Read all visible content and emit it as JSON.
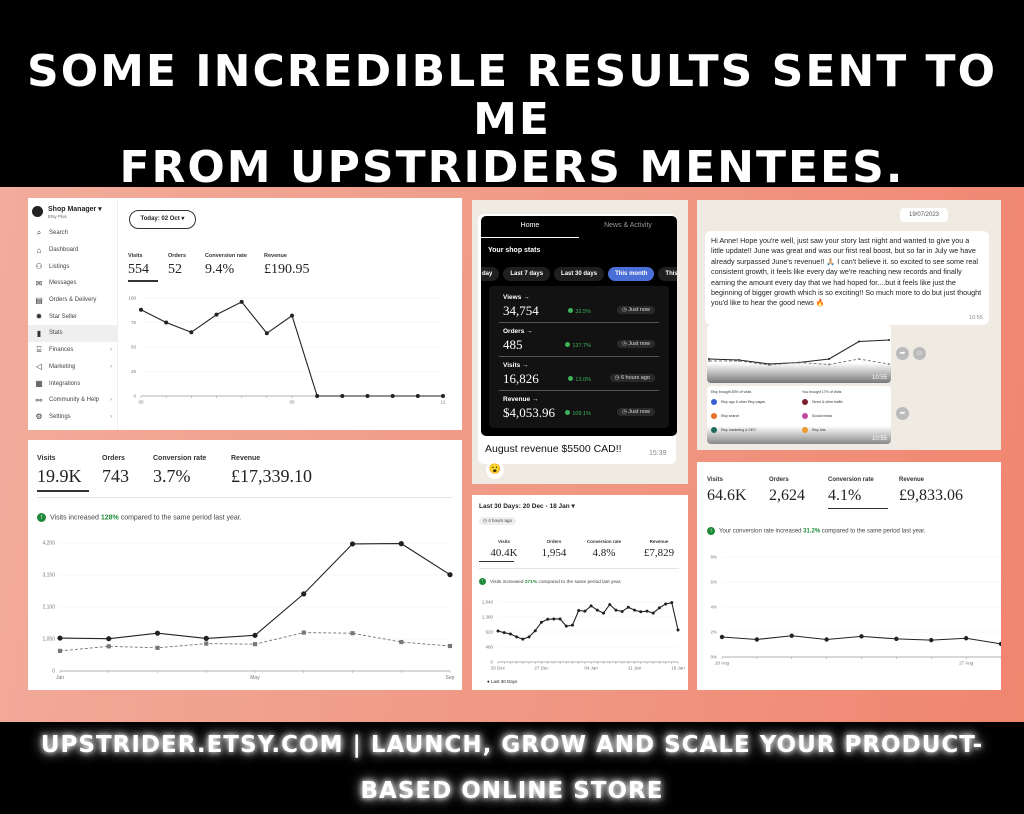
{
  "header": {
    "line1": "Some incredible results sent to me",
    "line2": "from Upstriders mentees."
  },
  "footer": {
    "text": "upstrider.etsy.com | Launch, grow and scale your product-based online store"
  },
  "panel1": {
    "shop_title": "Shop Manager",
    "shop_sub": "Etsy Plus",
    "date_button": "Today: 02 Oct",
    "sidebar": [
      {
        "label": "Search",
        "icon": "search-icon",
        "glyph": "⌕"
      },
      {
        "label": "Dashboard",
        "icon": "home-icon",
        "glyph": "⌂"
      },
      {
        "label": "Listings",
        "icon": "listings-icon",
        "glyph": "⚇"
      },
      {
        "label": "Messages",
        "icon": "mail-icon",
        "glyph": "✉"
      },
      {
        "label": "Orders & Delivery",
        "icon": "clipboard-icon",
        "glyph": "▤"
      },
      {
        "label": "Star Seller",
        "icon": "star-badge-icon",
        "glyph": "✹"
      },
      {
        "label": "Stats",
        "icon": "bar-chart-icon",
        "glyph": "▮",
        "active": true
      },
      {
        "label": "Finances",
        "icon": "bank-icon",
        "glyph": "⌸",
        "chevron": true
      },
      {
        "label": "Marketing",
        "icon": "megaphone-icon",
        "glyph": "◁",
        "chevron": true
      },
      {
        "label": "Integrations",
        "icon": "grid-icon",
        "glyph": "▦"
      },
      {
        "label": "Community & Help",
        "icon": "people-icon",
        "glyph": "⚯",
        "chevron": true
      },
      {
        "label": "Settings",
        "icon": "gear-icon",
        "glyph": "⚙",
        "chevron": true
      }
    ],
    "stats": [
      {
        "label": "Visits",
        "value": "554"
      },
      {
        "label": "Orders",
        "value": "52"
      },
      {
        "label": "Conversion rate",
        "value": "9.4%"
      },
      {
        "label": "Revenue",
        "value": "£190.95"
      }
    ]
  },
  "panel2": {
    "tabs": [
      "Home",
      "News & Activity"
    ],
    "section_title": "Your shop stats",
    "filters": [
      "day",
      "Last 7 days",
      "Last 30 days",
      "This month",
      "This ye"
    ],
    "active_filter": "This month",
    "stats": [
      {
        "label": "Views →",
        "value": "34,754",
        "pct": "32.5%",
        "when": "Just now"
      },
      {
        "label": "Orders →",
        "value": "485",
        "pct": "137.7%",
        "when": "Just now"
      },
      {
        "label": "Visits →",
        "value": "16,826",
        "pct": "13.0%",
        "when": "6 hours ago"
      },
      {
        "label": "Revenue →",
        "value": "$4,053.96",
        "pct": "109.1%",
        "when": "Just now"
      }
    ],
    "message": "August revenue $5500 CAD!!",
    "time": "15:39",
    "reaction": "😮"
  },
  "panel3": {
    "date": "19/07/2023",
    "message": "Hi Anne! Hope you're well, just saw your story last night and wanted to give you a little update!! June was great and was our first real boost, but so far in July we have already surpassed June's revenue!! 🙏🏼 I can't believe it. so excited to see some real consistent growth, it feels like every day we're reaching new records and finally earning the amount every day that we had hoped for....but it feels like just the beginning of bigger growth which is so exciting!! So much more to do but just thought you'd like to hear the good news 🔥",
    "time": "10:55",
    "image_time1": "10:55",
    "image_time2": "10:55",
    "sources_left_title": "Etsy brought 83% of visits",
    "sources_right_title": "You brought 17% of visits",
    "sources_left": [
      "Etsy app & other Etsy pages",
      "Etsy search",
      "Etsy marketing & SEO"
    ],
    "sources_right": [
      "Direct & other traffic",
      "Social media",
      "Etsy Ads"
    ],
    "source_colors": [
      "#3b5bd6",
      "#e8702a",
      "#1e6b5c",
      "#7a1f2e",
      "#c04ca0",
      "#e89a2a"
    ]
  },
  "panel4": {
    "stats": [
      {
        "label": "Visits",
        "value": "19.9K"
      },
      {
        "label": "Orders",
        "value": "743"
      },
      {
        "label": "Conversion rate",
        "value": "3.7%"
      },
      {
        "label": "Revenue",
        "value": "£17,339.10"
      }
    ],
    "notice_pre": "Visits increased ",
    "notice_pct": "128%",
    "notice_post": " compared to the same period last year."
  },
  "panel5": {
    "range": "Last 30 Days: 20 Dec - 18 Jan",
    "updated": "4 hours ago",
    "stats": [
      {
        "label": "Visits",
        "value": "40.4K"
      },
      {
        "label": "Orders",
        "value": "1,954"
      },
      {
        "label": "Conversion rate",
        "value": "4.8%"
      },
      {
        "label": "Revenue",
        "value": "£7,829"
      }
    ],
    "notice_pre": "Visits increased ",
    "notice_pct": "271%",
    "notice_post": " compared to the same period last year.",
    "legend": "Last 30 Days"
  },
  "panel6": {
    "stats": [
      {
        "label": "Visits",
        "value": "64.6K"
      },
      {
        "label": "Orders",
        "value": "2,624"
      },
      {
        "label": "Conversion rate",
        "value": "4.1%"
      },
      {
        "label": "Revenue",
        "value": "£9,833.06"
      }
    ],
    "notice_pre": "Your conversion rate increased ",
    "notice_pct": "31.2%",
    "notice_post": " compared to the same period last year."
  },
  "colors": {
    "accent_green": "#1f8a3a",
    "active_pill": "#4a6fd6",
    "line": "#222222",
    "dashed": "#777777"
  },
  "chart_data": [
    {
      "id": "c1",
      "type": "line",
      "x": [
        0,
        1,
        2,
        3,
        4,
        5,
        6,
        7,
        8,
        9,
        10,
        11,
        12
      ],
      "series": [
        {
          "values": [
            88,
            75,
            65,
            83,
            96,
            64,
            82,
            0,
            0,
            0,
            0,
            0,
            0
          ]
        }
      ],
      "xticks": [
        {
          "at": 0,
          "label": "00"
        },
        {
          "at": 6,
          "label": "06"
        },
        {
          "at": 12,
          "label": "12"
        }
      ],
      "yticks": [
        "0",
        "25",
        "50",
        "75",
        "100"
      ],
      "ylim": [
        0,
        100
      ],
      "grid": true
    },
    {
      "id": "c4",
      "type": "line",
      "x": [
        "Jan",
        "Feb",
        "Mar",
        "Apr",
        "May",
        "Jun",
        "Jul",
        "Aug",
        "Sep"
      ],
      "series": [
        {
          "values": [
            1080,
            1060,
            1240,
            1070,
            1170,
            2530,
            4170,
            4180,
            3160
          ]
        },
        {
          "values": [
            660,
            810,
            760,
            900,
            880,
            1260,
            1240,
            950,
            820
          ],
          "dashed": true
        }
      ],
      "xticks": [
        {
          "at": 0,
          "label": "Jan"
        },
        {
          "at": 4,
          "label": "May"
        },
        {
          "at": 8,
          "label": "Sep"
        }
      ],
      "yticks": [
        "0",
        "1,050",
        "2,100",
        "3,150",
        "4,200"
      ],
      "ylim": [
        0,
        4200
      ],
      "grid": true
    },
    {
      "id": "c5",
      "type": "line",
      "x": "20 Dec - 18 Jan (daily)",
      "series": [
        {
          "name": "Last 30 Days",
          "values": [
            950,
            900,
            860,
            770,
            700,
            770,
            960,
            1220,
            1310,
            1320,
            1320,
            1100,
            1130,
            1580,
            1560,
            1720,
            1590,
            1500,
            1760,
            1590,
            1550,
            1680,
            1590,
            1540,
            1560,
            1500,
            1660,
            1780,
            1820,
            980
          ]
        }
      ],
      "xticks": [
        {
          "at": 0,
          "label": "20 Dec"
        },
        {
          "at": 7,
          "label": "27 Dec"
        },
        {
          "at": 15,
          "label": "04 Jan"
        },
        {
          "at": 22,
          "label": "11 Jan"
        },
        {
          "at": 29,
          "label": "18 Jan"
        }
      ],
      "yticks": [
        "0",
        "460",
        "920",
        "1,380",
        "1,840"
      ],
      "ylim": [
        0,
        1840
      ],
      "grid": true
    },
    {
      "id": "c6",
      "type": "line",
      "x": "20 Aug onward (daily)",
      "series": [
        {
          "values": [
            1.6,
            1.4,
            1.7,
            1.4,
            1.65,
            1.45,
            1.35,
            1.5,
            1.05
          ]
        }
      ],
      "xticks": [
        {
          "at": 0,
          "label": "20 Aug"
        },
        {
          "at": 7,
          "label": "27 Aug"
        }
      ],
      "yticks": [
        "0%",
        "2%",
        "4%",
        "6%",
        "8%"
      ],
      "ylim": [
        0,
        8
      ],
      "grid": true
    },
    {
      "id": "c3",
      "type": "line",
      "series": [
        {
          "values": [
            40,
            38,
            30,
            33,
            40,
            75,
            78
          ]
        },
        {
          "values": [
            36,
            36,
            28,
            33,
            29,
            40,
            30
          ],
          "dashed": true
        }
      ],
      "ylim": [
        0,
        100
      ],
      "grid": false
    }
  ]
}
